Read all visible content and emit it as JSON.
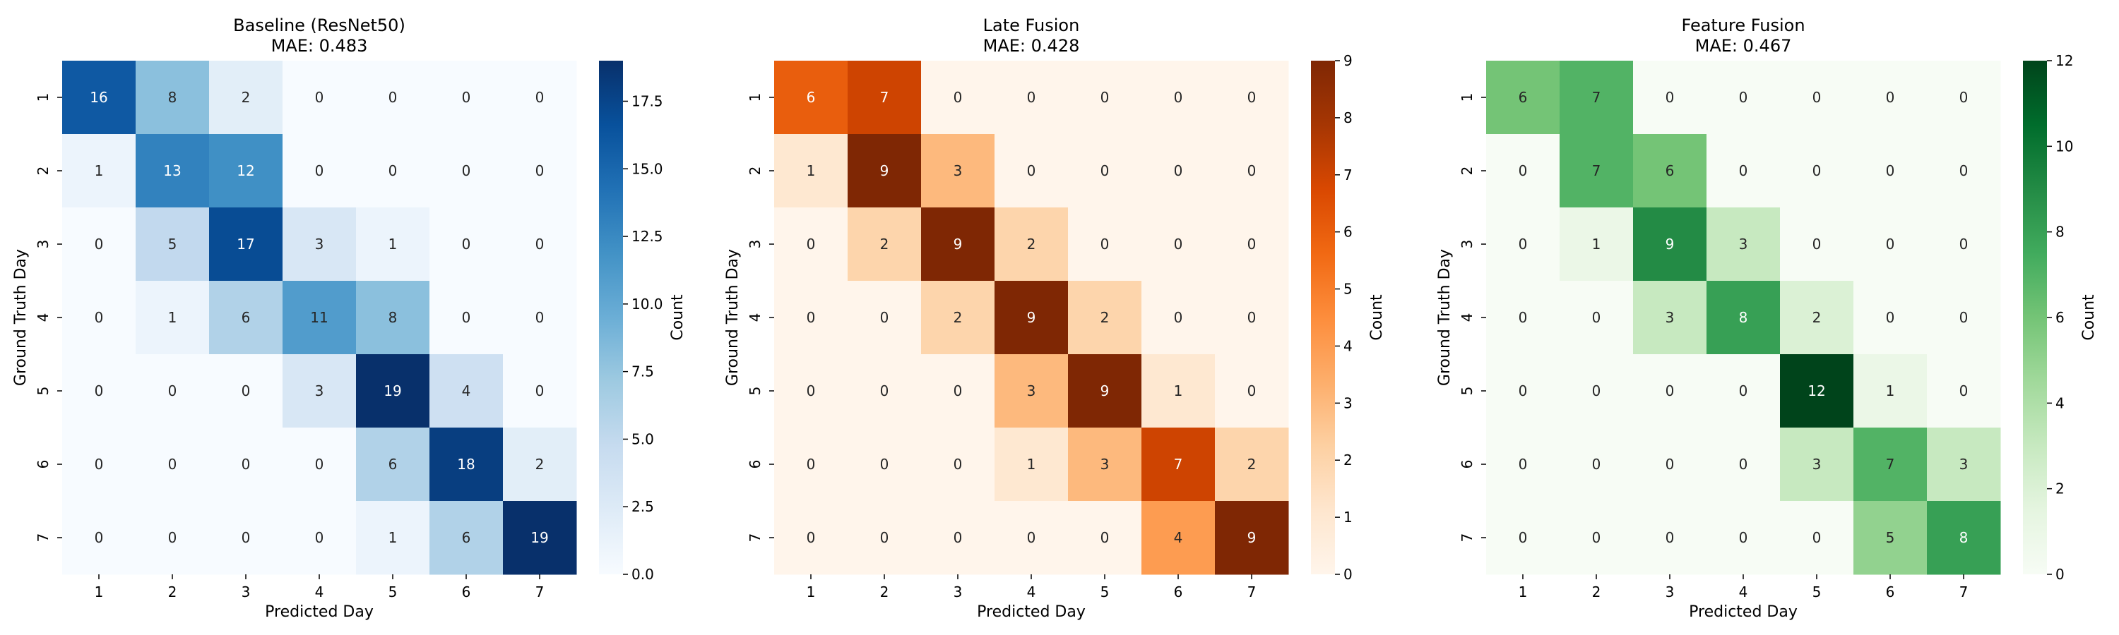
{
  "chart_data": [
    {
      "type": "heatmap",
      "title": "Baseline (ResNet50)",
      "subtitle": "MAE: 0.483",
      "xlabel": "Predicted Day",
      "ylabel": "Ground Truth Day",
      "x_categories": [
        "1",
        "2",
        "3",
        "4",
        "5",
        "6",
        "7"
      ],
      "y_categories": [
        "1",
        "2",
        "3",
        "4",
        "5",
        "6",
        "7"
      ],
      "values": [
        [
          16,
          8,
          2,
          0,
          0,
          0,
          0
        ],
        [
          1,
          13,
          12,
          0,
          0,
          0,
          0
        ],
        [
          0,
          5,
          17,
          3,
          1,
          0,
          0
        ],
        [
          0,
          1,
          6,
          11,
          8,
          0,
          0
        ],
        [
          0,
          0,
          0,
          3,
          19,
          4,
          0
        ],
        [
          0,
          0,
          0,
          0,
          6,
          18,
          2
        ],
        [
          0,
          0,
          0,
          0,
          1,
          6,
          19
        ]
      ],
      "colorbar": {
        "label": "Count",
        "min": 0,
        "max": 19,
        "ticks": [
          "0.0",
          "2.5",
          "5.0",
          "7.5",
          "10.0",
          "12.5",
          "15.0",
          "17.5"
        ],
        "tick_values": [
          0,
          2.5,
          5,
          7.5,
          10,
          12.5,
          15,
          17.5
        ]
      },
      "colormap": "Blues",
      "colors": [
        "#f7fbff",
        "#deebf7",
        "#c6dbef",
        "#9ecae1",
        "#6baed6",
        "#4292c6",
        "#2171b5",
        "#08519c",
        "#08306b"
      ]
    },
    {
      "type": "heatmap",
      "title": "Late Fusion",
      "subtitle": "MAE: 0.428",
      "xlabel": "Predicted Day",
      "ylabel": "Ground Truth Day",
      "x_categories": [
        "1",
        "2",
        "3",
        "4",
        "5",
        "6",
        "7"
      ],
      "y_categories": [
        "1",
        "2",
        "3",
        "4",
        "5",
        "6",
        "7"
      ],
      "values": [
        [
          6,
          7,
          0,
          0,
          0,
          0,
          0
        ],
        [
          1,
          9,
          3,
          0,
          0,
          0,
          0
        ],
        [
          0,
          2,
          9,
          2,
          0,
          0,
          0
        ],
        [
          0,
          0,
          2,
          9,
          2,
          0,
          0
        ],
        [
          0,
          0,
          0,
          3,
          9,
          1,
          0
        ],
        [
          0,
          0,
          0,
          1,
          3,
          7,
          2
        ],
        [
          0,
          0,
          0,
          0,
          0,
          4,
          9
        ]
      ],
      "colorbar": {
        "label": "Count",
        "min": 0,
        "max": 9,
        "ticks": [
          "0",
          "1",
          "2",
          "3",
          "4",
          "5",
          "6",
          "7",
          "8",
          "9"
        ],
        "tick_values": [
          0,
          1,
          2,
          3,
          4,
          5,
          6,
          7,
          8,
          9
        ]
      },
      "colormap": "Oranges",
      "colors": [
        "#fff5eb",
        "#fee6ce",
        "#fdd0a2",
        "#fdae6b",
        "#fd8d3c",
        "#f16913",
        "#d94801",
        "#a63603",
        "#7f2704"
      ]
    },
    {
      "type": "heatmap",
      "title": "Feature Fusion",
      "subtitle": "MAE: 0.467",
      "xlabel": "Predicted Day",
      "ylabel": "Ground Truth Day",
      "x_categories": [
        "1",
        "2",
        "3",
        "4",
        "5",
        "6",
        "7"
      ],
      "y_categories": [
        "1",
        "2",
        "3",
        "4",
        "5",
        "6",
        "7"
      ],
      "values": [
        [
          6,
          7,
          0,
          0,
          0,
          0,
          0
        ],
        [
          0,
          7,
          6,
          0,
          0,
          0,
          0
        ],
        [
          0,
          1,
          9,
          3,
          0,
          0,
          0
        ],
        [
          0,
          0,
          3,
          8,
          2,
          0,
          0
        ],
        [
          0,
          0,
          0,
          0,
          12,
          1,
          0
        ],
        [
          0,
          0,
          0,
          0,
          3,
          7,
          3
        ],
        [
          0,
          0,
          0,
          0,
          0,
          5,
          8
        ]
      ],
      "colorbar": {
        "label": "Count",
        "min": 0,
        "max": 12,
        "ticks": [
          "0",
          "2",
          "4",
          "6",
          "8",
          "10",
          "12"
        ],
        "tick_values": [
          0,
          2,
          4,
          6,
          8,
          10,
          12
        ]
      },
      "colormap": "Greens",
      "colors": [
        "#f7fcf5",
        "#e5f5e0",
        "#c7e9c0",
        "#a1d99b",
        "#74c476",
        "#41ab5d",
        "#238b45",
        "#006d2c",
        "#00441b"
      ]
    }
  ]
}
